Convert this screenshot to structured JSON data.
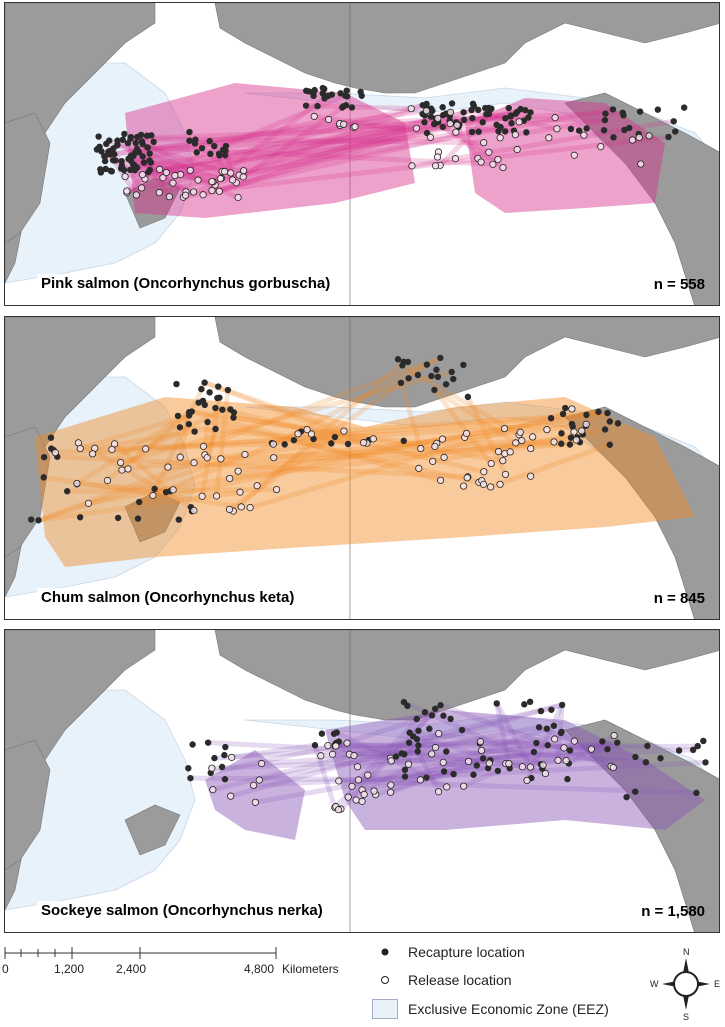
{
  "panels": [
    {
      "species_label": "Pink salmon  (Oncorhynchus gorbuscha)",
      "count_label": "n = 558",
      "track_color": "#d6308c",
      "zone": "pink"
    },
    {
      "species_label": "Chum salmon (Oncorhynchus keta)",
      "count_label": "n = 845",
      "track_color": "#f08a24",
      "zone": "chum"
    },
    {
      "species_label": "Sockeye salmon (Oncorhynchus nerka)",
      "count_label": "n = 1,580",
      "track_color": "#8a55b5",
      "zone": "sockeye"
    }
  ],
  "scale": {
    "ticks": [
      "0",
      "1,200",
      "2,400",
      "4,800"
    ],
    "unit": "Kilometers"
  },
  "legend": {
    "recapture": "Recapture location",
    "release": "Release location",
    "eez": "Exclusive Economic Zone (EEZ)"
  },
  "compass": {
    "n": "N",
    "s": "S",
    "e": "E",
    "w": "W"
  },
  "colors": {
    "land": "#9b9b9b",
    "eez": "#e8f2fb",
    "ocean": "#ffffff"
  }
}
